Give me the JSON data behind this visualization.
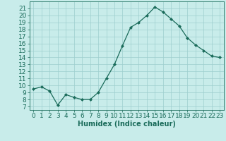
{
  "x": [
    0,
    1,
    2,
    3,
    4,
    5,
    6,
    7,
    8,
    9,
    10,
    11,
    12,
    13,
    14,
    15,
    16,
    17,
    18,
    19,
    20,
    21,
    22,
    23
  ],
  "y": [
    9.5,
    9.8,
    9.2,
    7.2,
    8.7,
    8.3,
    8.0,
    8.0,
    9.0,
    11.0,
    13.0,
    15.7,
    18.3,
    19.0,
    20.0,
    21.2,
    20.5,
    19.5,
    18.5,
    16.8,
    15.8,
    15.0,
    14.2,
    14.0
  ],
  "line_color": "#1a6b5a",
  "marker": "D",
  "marker_size": 2,
  "bg_color": "#c8ecea",
  "grid_color": "#9ecece",
  "xlabel": "Humidex (Indice chaleur)",
  "xlim": [
    -0.5,
    23.5
  ],
  "ylim": [
    6.5,
    22.0
  ],
  "xticks": [
    0,
    1,
    2,
    3,
    4,
    5,
    6,
    7,
    8,
    9,
    10,
    11,
    12,
    13,
    14,
    15,
    16,
    17,
    18,
    19,
    20,
    21,
    22,
    23
  ],
  "yticks": [
    7,
    8,
    9,
    10,
    11,
    12,
    13,
    14,
    15,
    16,
    17,
    18,
    19,
    20,
    21
  ],
  "xlabel_fontsize": 7,
  "tick_fontsize": 6.5
}
